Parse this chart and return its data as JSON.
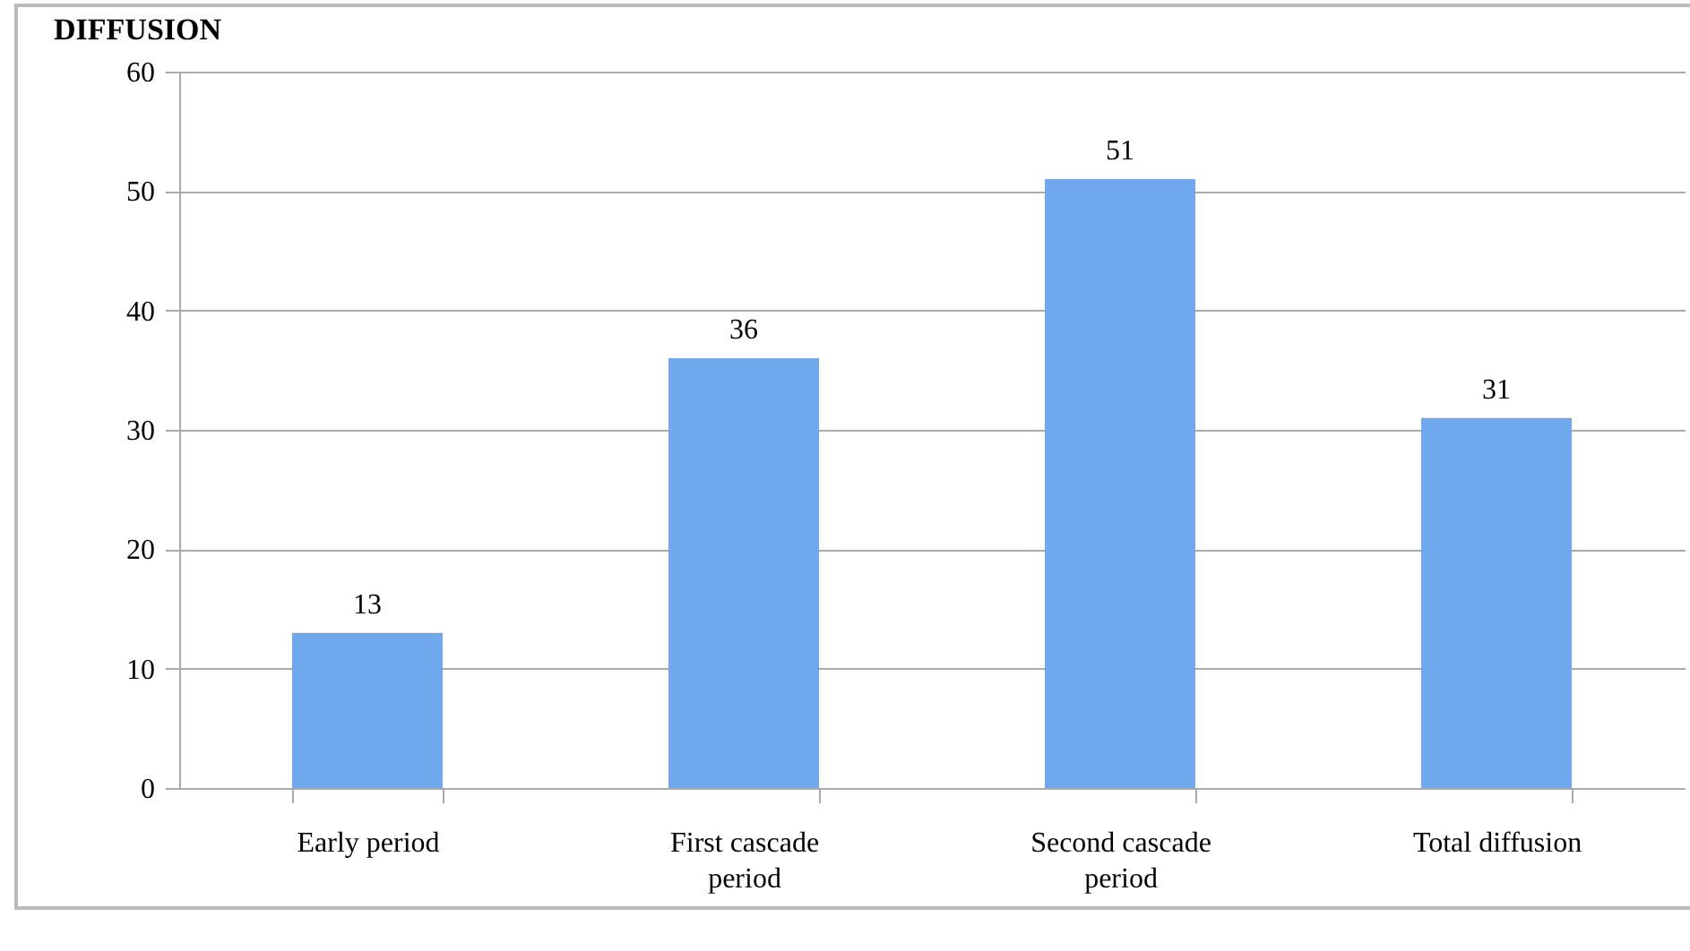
{
  "chart_data": {
    "type": "bar",
    "title": "DIFFUSION",
    "categories": [
      "Early period",
      "First cascade period",
      "Second cascade period",
      "Total diffusion"
    ],
    "values": [
      13,
      36,
      51,
      31
    ],
    "color": "#6fa8ec",
    "ylim": [
      0,
      60
    ],
    "yticks": [
      0,
      10,
      20,
      30,
      40,
      50,
      60
    ],
    "grid": "y",
    "data_labels": true
  }
}
